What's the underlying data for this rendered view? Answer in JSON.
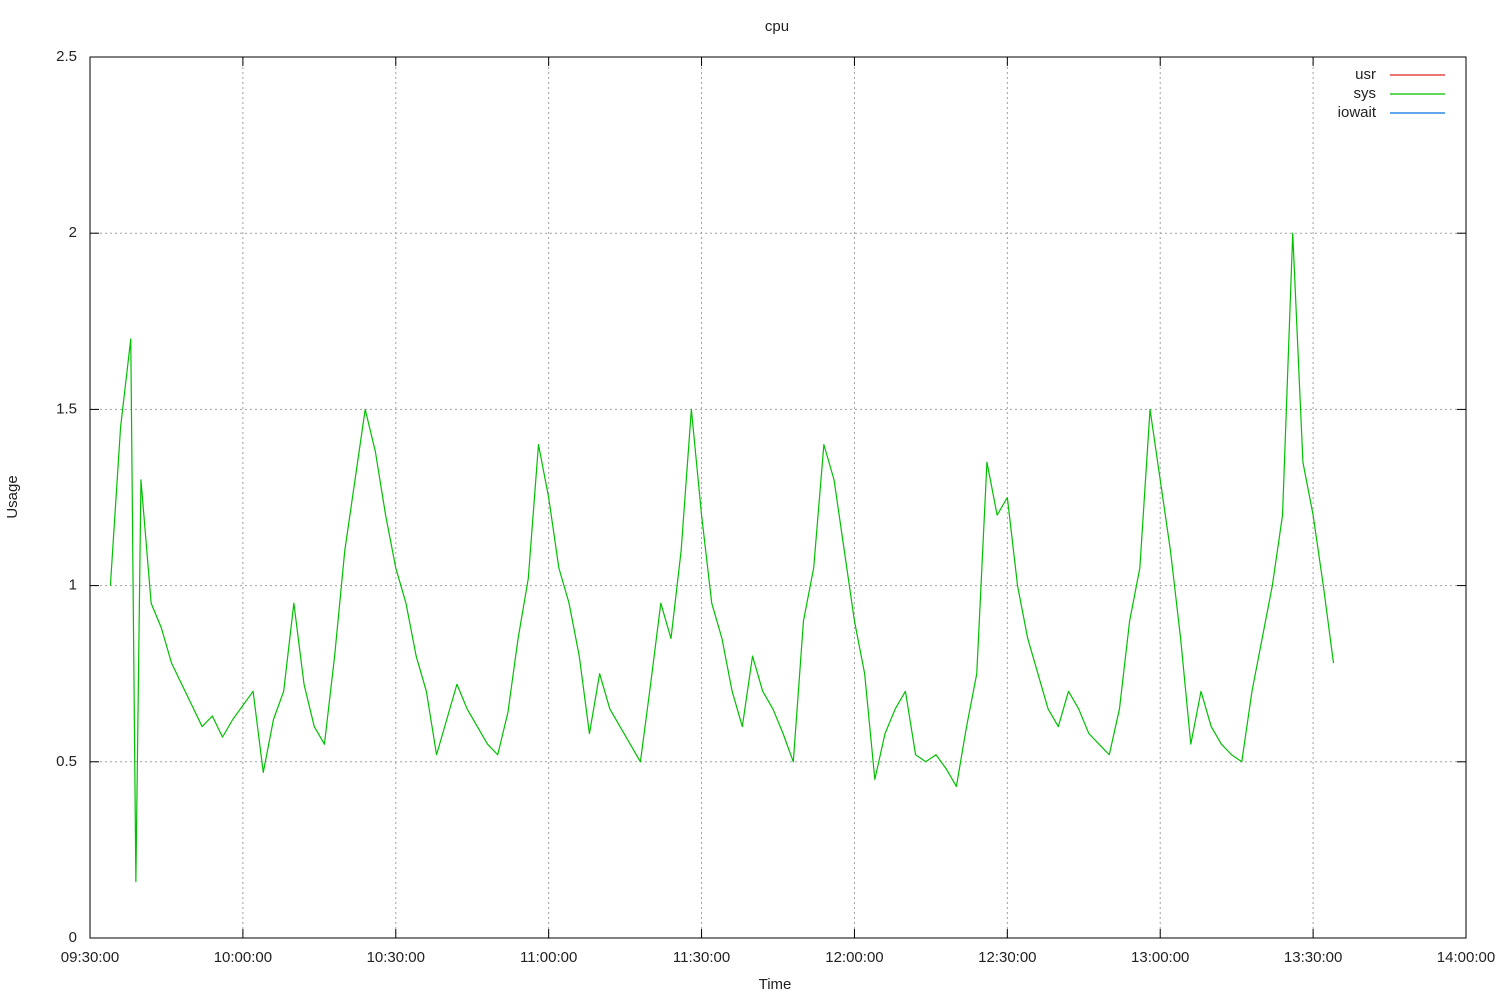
{
  "chart_data": {
    "type": "line",
    "title": "cpu",
    "xlabel": "Time",
    "ylabel": "Usage",
    "x": [
      "09:34:00",
      "09:36:00",
      "09:38:00",
      "09:39:00",
      "09:40:00",
      "09:42:00",
      "09:44:00",
      "09:46:00",
      "09:48:00",
      "09:50:00",
      "09:52:00",
      "09:54:00",
      "09:56:00",
      "09:58:00",
      "10:00:00",
      "10:02:00",
      "10:04:00",
      "10:06:00",
      "10:08:00",
      "10:10:00",
      "10:12:00",
      "10:14:00",
      "10:16:00",
      "10:18:00",
      "10:20:00",
      "10:22:00",
      "10:24:00",
      "10:26:00",
      "10:28:00",
      "10:30:00",
      "10:32:00",
      "10:34:00",
      "10:36:00",
      "10:38:00",
      "10:40:00",
      "10:42:00",
      "10:44:00",
      "10:46:00",
      "10:48:00",
      "10:50:00",
      "10:52:00",
      "10:54:00",
      "10:56:00",
      "10:58:00",
      "11:00:00",
      "11:02:00",
      "11:04:00",
      "11:06:00",
      "11:08:00",
      "11:10:00",
      "11:12:00",
      "11:14:00",
      "11:16:00",
      "11:18:00",
      "11:20:00",
      "11:22:00",
      "11:24:00",
      "11:26:00",
      "11:28:00",
      "11:30:00",
      "11:32:00",
      "11:34:00",
      "11:36:00",
      "11:38:00",
      "11:40:00",
      "11:42:00",
      "11:44:00",
      "11:46:00",
      "11:48:00",
      "11:50:00",
      "11:52:00",
      "11:54:00",
      "11:56:00",
      "11:58:00",
      "12:00:00",
      "12:02:00",
      "12:04:00",
      "12:06:00",
      "12:08:00",
      "12:10:00",
      "12:12:00",
      "12:14:00",
      "12:16:00",
      "12:18:00",
      "12:20:00",
      "12:22:00",
      "12:24:00",
      "12:26:00",
      "12:28:00",
      "12:30:00",
      "12:32:00",
      "12:34:00",
      "12:36:00",
      "12:38:00",
      "12:40:00",
      "12:42:00",
      "12:44:00",
      "12:46:00",
      "12:48:00",
      "12:50:00",
      "12:52:00",
      "12:54:00",
      "12:56:00",
      "12:58:00",
      "13:00:00",
      "13:02:00",
      "13:04:00",
      "13:06:00",
      "13:08:00",
      "13:10:00",
      "13:12:00",
      "13:14:00",
      "13:16:00",
      "13:18:00",
      "13:20:00",
      "13:22:00",
      "13:24:00",
      "13:26:00",
      "13:28:00",
      "13:30:00",
      "13:32:00",
      "13:34:00"
    ],
    "series": [
      {
        "name": "usr",
        "color": "#e02020",
        "values": [
          null,
          null,
          null,
          null,
          null,
          null,
          null,
          null,
          null,
          null,
          null,
          null,
          null,
          null,
          null,
          null,
          null,
          null,
          null,
          null,
          null,
          null,
          null,
          null,
          null,
          null,
          null,
          null,
          null,
          null,
          null,
          null,
          null,
          null,
          null,
          null,
          null,
          null,
          null,
          null,
          null,
          null,
          null,
          null,
          null,
          null,
          null,
          null,
          null,
          null,
          null,
          null,
          null,
          null,
          null,
          null,
          null,
          null,
          null,
          null,
          null,
          null,
          null,
          null,
          null,
          null,
          null,
          null,
          null,
          null,
          null,
          null,
          null,
          null,
          null,
          null,
          null,
          null,
          null,
          null,
          null,
          null,
          null,
          null,
          null,
          null,
          null,
          null,
          null,
          null,
          null,
          null,
          null,
          null,
          null,
          null,
          null,
          null,
          null,
          null,
          null,
          null,
          null,
          null,
          null,
          null,
          null,
          null,
          null,
          null,
          null,
          null,
          null,
          null,
          null,
          null,
          null,
          null,
          null,
          null,
          null,
          null
        ]
      },
      {
        "name": "sys",
        "color": "#00c000",
        "values": [
          1.0,
          1.45,
          1.7,
          0.16,
          1.3,
          0.95,
          0.88,
          0.78,
          0.72,
          0.66,
          0.6,
          0.63,
          0.57,
          0.62,
          0.66,
          0.7,
          0.47,
          0.62,
          0.7,
          0.95,
          0.72,
          0.6,
          0.55,
          0.8,
          1.1,
          1.3,
          1.5,
          1.38,
          1.2,
          1.05,
          0.95,
          0.8,
          0.7,
          0.52,
          0.62,
          0.72,
          0.65,
          0.6,
          0.55,
          0.52,
          0.64,
          0.85,
          1.02,
          1.4,
          1.25,
          1.05,
          0.95,
          0.8,
          0.58,
          0.75,
          0.65,
          0.6,
          0.55,
          0.5,
          0.72,
          0.95,
          0.85,
          1.1,
          1.5,
          1.2,
          0.95,
          0.85,
          0.7,
          0.6,
          0.8,
          0.7,
          0.65,
          0.58,
          0.5,
          0.9,
          1.05,
          1.4,
          1.3,
          1.1,
          0.9,
          0.75,
          0.45,
          0.58,
          0.65,
          0.7,
          0.52,
          0.5,
          0.52,
          0.48,
          0.43,
          0.6,
          0.75,
          1.35,
          1.2,
          1.25,
          1.0,
          0.85,
          0.75,
          0.65,
          0.6,
          0.7,
          0.65,
          0.58,
          0.55,
          0.52,
          0.65,
          0.9,
          1.05,
          1.5,
          1.3,
          1.1,
          0.85,
          0.55,
          0.7,
          0.6,
          0.55,
          0.52,
          0.5,
          0.7,
          0.85,
          1.0,
          1.2,
          2.0,
          1.35,
          1.2,
          1.0,
          0.78
        ]
      },
      {
        "name": "iowait",
        "color": "#0070e0",
        "values": [
          null,
          null,
          null,
          null,
          null,
          null,
          null,
          null,
          null,
          null,
          null,
          null,
          null,
          null,
          null,
          null,
          null,
          null,
          null,
          null,
          null,
          null,
          null,
          null,
          null,
          null,
          null,
          null,
          null,
          null,
          null,
          null,
          null,
          null,
          null,
          null,
          null,
          null,
          null,
          null,
          null,
          null,
          null,
          null,
          null,
          null,
          null,
          null,
          null,
          null,
          null,
          null,
          null,
          null,
          null,
          null,
          null,
          null,
          null,
          null,
          null,
          null,
          null,
          null,
          null,
          null,
          null,
          null,
          null,
          null,
          null,
          null,
          null,
          null,
          null,
          null,
          null,
          null,
          null,
          null,
          null,
          null,
          null,
          null,
          null,
          null,
          null,
          null,
          null,
          null,
          null,
          null,
          null,
          null,
          null,
          null,
          null,
          null,
          null,
          null,
          null,
          null,
          null,
          null,
          null,
          null,
          null,
          null,
          null,
          null,
          null,
          null,
          null,
          null,
          null,
          null,
          null,
          null,
          null,
          null,
          null,
          null
        ]
      }
    ],
    "xlim": [
      "09:30:00",
      "14:00:00"
    ],
    "xticks": [
      "09:30:00",
      "10:00:00",
      "10:30:00",
      "11:00:00",
      "11:30:00",
      "12:00:00",
      "12:30:00",
      "13:00:00",
      "13:30:00",
      "14:00:00"
    ],
    "ylim": [
      0,
      2.5
    ],
    "yticks": [
      0,
      0.5,
      1,
      1.5,
      2,
      2.5
    ],
    "grid": true,
    "legend": "top-right"
  }
}
